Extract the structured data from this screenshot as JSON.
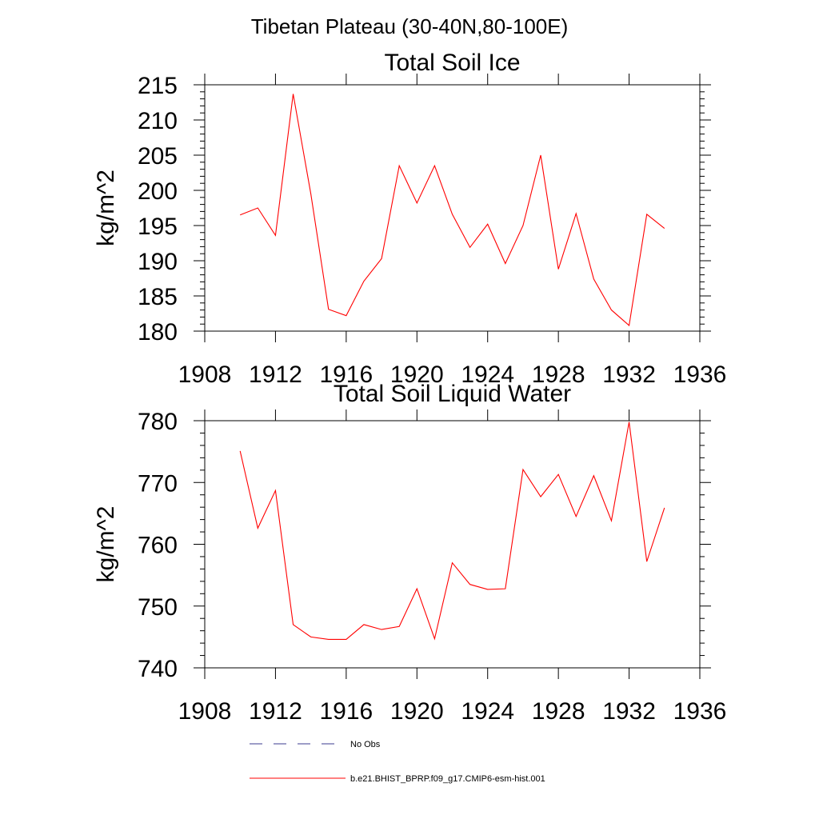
{
  "figure": {
    "title": "Tibetan Plateau (30-40N,80-100E)"
  },
  "legend": {
    "items": [
      {
        "label": "No Obs",
        "color": "#3b3b8f",
        "style": "dashed"
      },
      {
        "label": "b.e21.BHIST_BPRP.f09_g17.CMIP6-esm-hist.001",
        "color": "#ff0000",
        "style": "solid"
      }
    ]
  },
  "chart_data": [
    {
      "type": "line",
      "title": "Total Soil Ice",
      "xlabel": "",
      "ylabel": "kg/m^2",
      "xlim": [
        1908,
        1936
      ],
      "ylim": [
        180,
        215
      ],
      "x_ticks": [
        1908,
        1912,
        1916,
        1920,
        1924,
        1928,
        1932,
        1936
      ],
      "y_ticks": [
        180,
        185,
        190,
        195,
        200,
        205,
        210,
        215
      ],
      "grid": false,
      "series": [
        {
          "color": "#ff0000",
          "x": [
            1910,
            1911,
            1912,
            1913,
            1914,
            1915,
            1916,
            1917,
            1918,
            1919,
            1920,
            1921,
            1922,
            1923,
            1924,
            1925,
            1926,
            1927,
            1928,
            1929,
            1930,
            1931,
            1932,
            1933,
            1934
          ],
          "values": [
            196.5,
            197.5,
            193.6,
            213.7,
            199.5,
            183.1,
            182.2,
            187.1,
            190.3,
            203.5,
            198.2,
            203.5,
            196.6,
            191.9,
            195.2,
            189.6,
            195.0,
            205.0,
            188.8,
            196.7,
            187.4,
            183.0,
            180.8,
            196.6,
            194.6
          ]
        }
      ]
    },
    {
      "type": "line",
      "title": "Total Soil Liquid Water",
      "xlabel": "",
      "ylabel": "kg/m^2",
      "xlim": [
        1908,
        1936
      ],
      "ylim": [
        740,
        780
      ],
      "x_ticks": [
        1908,
        1912,
        1916,
        1920,
        1924,
        1928,
        1932,
        1936
      ],
      "y_ticks": [
        740,
        750,
        760,
        770,
        780
      ],
      "grid": false,
      "series": [
        {
          "color": "#ff0000",
          "x": [
            1910,
            1911,
            1912,
            1913,
            1914,
            1915,
            1916,
            1917,
            1918,
            1919,
            1920,
            1921,
            1922,
            1923,
            1924,
            1925,
            1926,
            1927,
            1928,
            1929,
            1930,
            1931,
            1932,
            1933,
            1934
          ],
          "values": [
            775.1,
            762.6,
            768.7,
            747.0,
            745.0,
            744.6,
            744.6,
            747.0,
            746.2,
            746.7,
            752.8,
            744.7,
            757.0,
            753.5,
            752.7,
            752.8,
            772.1,
            767.7,
            771.3,
            764.5,
            771.1,
            763.8,
            779.8,
            757.2,
            765.9
          ]
        }
      ]
    }
  ]
}
